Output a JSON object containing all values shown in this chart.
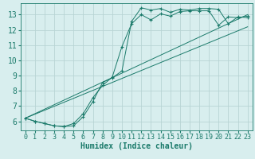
{
  "bg_color": "#d8eeee",
  "grid_color": "#b8d4d4",
  "line_color": "#1a7a6a",
  "marker_color": "#1a7a6a",
  "xlabel": "Humidex (Indice chaleur)",
  "xlabel_fontsize": 7,
  "tick_fontsize": 6,
  "xticks": [
    0,
    1,
    2,
    3,
    4,
    5,
    6,
    7,
    8,
    9,
    10,
    11,
    12,
    13,
    14,
    15,
    16,
    17,
    18,
    19,
    20,
    21,
    22,
    23
  ],
  "yticks": [
    6,
    7,
    8,
    9,
    10,
    11,
    12,
    13
  ],
  "xlim": [
    -0.5,
    23.5
  ],
  "ylim": [
    5.4,
    13.75
  ],
  "line1_x": [
    0,
    1,
    2,
    3,
    4,
    5,
    6,
    7,
    8,
    9,
    10,
    11,
    12,
    13,
    14,
    15,
    16,
    17,
    18,
    19,
    20,
    21,
    22,
    23
  ],
  "line1_y": [
    6.2,
    6.0,
    5.85,
    5.7,
    5.65,
    5.7,
    6.3,
    7.3,
    8.55,
    8.85,
    9.3,
    12.55,
    13.45,
    13.3,
    13.4,
    13.15,
    13.35,
    13.3,
    13.4,
    13.4,
    13.35,
    12.4,
    12.85,
    12.8
  ],
  "line2_x": [
    0,
    1,
    2,
    3,
    4,
    5,
    6,
    7,
    8,
    9,
    10,
    11,
    12,
    13,
    14,
    15,
    16,
    17,
    18,
    19,
    20,
    21,
    22,
    23
  ],
  "line2_y": [
    6.2,
    6.0,
    5.85,
    5.7,
    5.65,
    5.85,
    6.5,
    7.55,
    8.35,
    8.9,
    10.9,
    12.4,
    13.0,
    12.65,
    13.05,
    12.9,
    13.2,
    13.25,
    13.25,
    13.25,
    12.3,
    12.85,
    12.8,
    12.9
  ],
  "line3_x": [
    0,
    23
  ],
  "line3_y": [
    6.2,
    13.0
  ],
  "line4_x": [
    0,
    23
  ],
  "line4_y": [
    6.2,
    12.2
  ]
}
